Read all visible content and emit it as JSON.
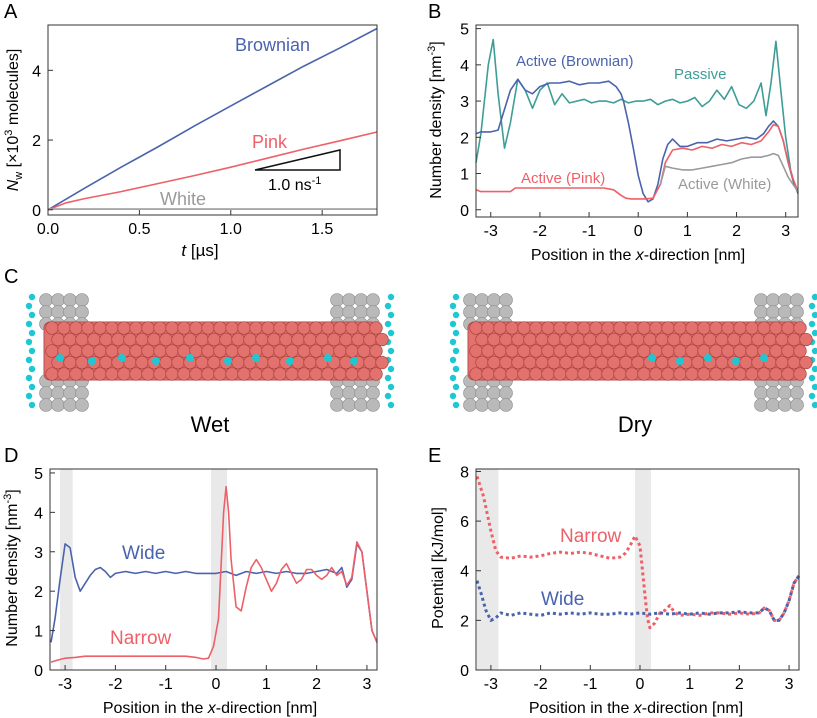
{
  "panel_letters": {
    "A": "A",
    "B": "B",
    "C": "C",
    "D": "D",
    "E": "E"
  },
  "colors": {
    "blue": "#4a63ad",
    "pink": "#ee6068",
    "gray": "#9a9a9a",
    "teal": "#3e9d96",
    "shade": "#e9e9e9",
    "wall": "#b9b9b9",
    "membrane": "#e3716e",
    "water": "#1ec8d2"
  },
  "chart_data": [
    {
      "id": "A",
      "type": "line",
      "ylabel_main": "N",
      "ylabel_sub": "w",
      "ylabel_rest": " [×10",
      "ylabel_exp": "3",
      "ylabel_end": " molecules]",
      "xlabel_italic": "t",
      "xlabel_rest": " [µs]",
      "xlim": [
        0,
        1.8
      ],
      "ylim": [
        -0.15,
        5.3
      ],
      "xticks": [
        0,
        0.5,
        1.0,
        1.5
      ],
      "xtick_labels": [
        "0.0",
        "0.5",
        "1.0",
        "1.5"
      ],
      "yticks": [
        0,
        2,
        4
      ],
      "ytick_labels": [
        "0",
        "2",
        "4"
      ],
      "series": [
        {
          "name": "Brownian",
          "color": "blue",
          "x": [
            0,
            0.2,
            0.4,
            0.6,
            0.8,
            1.0,
            1.2,
            1.4,
            1.6,
            1.8
          ],
          "y": [
            0,
            0.62,
            1.22,
            1.8,
            2.4,
            2.98,
            3.55,
            4.12,
            4.65,
            5.2
          ]
        },
        {
          "name": "Pink",
          "color": "pink",
          "x": [
            0,
            0.1,
            0.2,
            0.4,
            0.6,
            0.8,
            1.0,
            1.2,
            1.4,
            1.6,
            1.8
          ],
          "y": [
            0,
            0.2,
            0.32,
            0.52,
            0.75,
            0.98,
            1.22,
            1.48,
            1.74,
            1.98,
            2.23
          ]
        },
        {
          "name": "White",
          "color": "gray",
          "x": [
            0,
            1.8
          ],
          "y": [
            0.02,
            0.02
          ]
        }
      ],
      "slope_label": "1.0 ns",
      "slope_exp": "-1"
    },
    {
      "id": "B",
      "type": "line",
      "ylabel": "Number density [nm",
      "ylabel_exp": "-3",
      "ylabel_end": "]",
      "xlabel_start": "Position in the ",
      "xlabel_italic": "x",
      "xlabel_end": "-direction [nm]",
      "xlim": [
        -3.3,
        3.25
      ],
      "ylim": [
        -0.2,
        5.1
      ],
      "xticks": [
        -3,
        -2,
        -1,
        0,
        1,
        2,
        3
      ],
      "xtick_labels": [
        "-3",
        "-2",
        "-1",
        "0",
        "1",
        "2",
        "3"
      ],
      "yticks": [
        0,
        1,
        2,
        3,
        4,
        5
      ],
      "ytick_labels": [
        "0",
        "1",
        "2",
        "3",
        "4",
        "5"
      ],
      "series": [
        {
          "name": "Passive",
          "color": "teal",
          "x": [
            -3.3,
            -3.2,
            -3.05,
            -2.95,
            -2.85,
            -2.72,
            -2.6,
            -2.45,
            -2.3,
            -2.15,
            -2.0,
            -1.85,
            -1.7,
            -1.55,
            -1.4,
            -1.25,
            -1.1,
            -0.95,
            -0.8,
            -0.65,
            -0.5,
            -0.35,
            -0.2,
            -0.05,
            0.1,
            0.25,
            0.4,
            0.55,
            0.7,
            0.85,
            1.0,
            1.15,
            1.3,
            1.45,
            1.6,
            1.75,
            1.9,
            2.05,
            2.2,
            2.35,
            2.5,
            2.6,
            2.7,
            2.8,
            2.9,
            3.0,
            3.1,
            3.2
          ],
          "y": [
            1.3,
            2.1,
            4.0,
            4.7,
            3.2,
            1.7,
            2.4,
            3.6,
            3.3,
            2.8,
            3.3,
            3.5,
            2.9,
            3.2,
            2.95,
            3.0,
            3.05,
            2.95,
            3.0,
            3.0,
            2.95,
            3.05,
            2.95,
            3.0,
            3.0,
            3.05,
            2.9,
            3.0,
            3.05,
            2.95,
            3.0,
            3.1,
            2.85,
            3.0,
            3.3,
            3.05,
            3.4,
            2.9,
            2.8,
            3.0,
            3.5,
            2.6,
            3.5,
            4.65,
            3.3,
            2.0,
            1.1,
            0.6
          ]
        },
        {
          "name": "Active (Brownian)",
          "color": "blue",
          "x": [
            -3.3,
            -3.2,
            -3.0,
            -2.85,
            -2.6,
            -2.45,
            -2.3,
            -2.15,
            -2.0,
            -1.8,
            -1.6,
            -1.4,
            -1.2,
            -1.0,
            -0.8,
            -0.6,
            -0.45,
            -0.35,
            -0.3,
            -0.2,
            -0.1,
            0.0,
            0.1,
            0.2,
            0.3,
            0.4,
            0.5,
            0.6,
            0.7,
            0.85,
            1.0,
            1.2,
            1.4,
            1.6,
            1.8,
            2.0,
            2.2,
            2.4,
            2.55,
            2.65,
            2.75,
            2.85,
            2.95,
            3.05,
            3.15,
            3.25
          ],
          "y": [
            2.1,
            2.15,
            2.15,
            2.2,
            3.3,
            3.6,
            3.3,
            3.2,
            3.4,
            3.5,
            3.5,
            3.55,
            3.45,
            3.5,
            3.5,
            3.55,
            3.4,
            3.2,
            3.0,
            2.4,
            1.7,
            0.95,
            0.45,
            0.22,
            0.3,
            0.7,
            1.4,
            1.8,
            1.95,
            1.75,
            1.75,
            1.85,
            1.85,
            1.95,
            1.9,
            1.95,
            2.0,
            1.95,
            2.1,
            2.3,
            2.45,
            2.3,
            1.9,
            1.3,
            0.8,
            0.45
          ]
        },
        {
          "name": "Active (Pink)",
          "color": "pink",
          "x": [
            -3.3,
            -3.2,
            -3.0,
            -2.8,
            -2.6,
            -2.5,
            -2.2,
            -1.9,
            -1.6,
            -1.3,
            -1.0,
            -0.7,
            -0.5,
            -0.35,
            -0.25,
            -0.15,
            0.0,
            0.15,
            0.3,
            0.45,
            0.55,
            0.7,
            0.9,
            1.1,
            1.3,
            1.5,
            1.7,
            1.9,
            2.1,
            2.3,
            2.5,
            2.65,
            2.75,
            2.85,
            2.95,
            3.05,
            3.15,
            3.25
          ],
          "y": [
            0.55,
            0.5,
            0.5,
            0.5,
            0.5,
            0.6,
            0.6,
            0.6,
            0.6,
            0.6,
            0.6,
            0.6,
            0.55,
            0.4,
            0.32,
            0.3,
            0.3,
            0.3,
            0.32,
            0.7,
            1.3,
            1.65,
            1.7,
            1.65,
            1.75,
            1.7,
            1.8,
            1.75,
            1.85,
            1.8,
            1.9,
            2.15,
            2.35,
            2.3,
            1.9,
            1.3,
            0.85,
            0.5
          ]
        },
        {
          "name": "Active (White)",
          "color": "gray",
          "x": [
            0.45,
            0.55,
            0.7,
            0.9,
            1.1,
            1.3,
            1.5,
            1.7,
            1.9,
            2.1,
            2.3,
            2.5,
            2.65,
            2.75,
            2.85,
            2.95,
            3.05,
            3.15,
            3.25
          ],
          "y": [
            0.7,
            1.2,
            1.15,
            1.1,
            1.1,
            1.15,
            1.2,
            1.25,
            1.3,
            1.4,
            1.45,
            1.45,
            1.5,
            1.55,
            1.5,
            1.2,
            0.9,
            0.7,
            0.5
          ]
        }
      ]
    },
    {
      "id": "D",
      "type": "line",
      "ylabel": "Number density [nm",
      "ylabel_exp": "-3",
      "ylabel_end": "]",
      "xlabel_start": "Position in the ",
      "xlabel_italic": "x",
      "xlabel_end": "-direction [nm]",
      "xlim": [
        -3.3,
        3.2
      ],
      "ylim": [
        0,
        5.1
      ],
      "xticks": [
        -3,
        -2,
        -1,
        0,
        1,
        2,
        3
      ],
      "xtick_labels": [
        "-3",
        "-2",
        "-1",
        "0",
        "1",
        "2",
        "3"
      ],
      "yticks": [
        0,
        1,
        2,
        3,
        4,
        5
      ],
      "ytick_labels": [
        "0",
        "1",
        "2",
        "3",
        "4",
        "5"
      ],
      "shaded": [
        [
          -3.1,
          -2.85
        ],
        [
          -0.1,
          0.22
        ]
      ],
      "series": [
        {
          "name": "Wide",
          "color": "blue",
          "x": [
            -3.28,
            -3.2,
            -3.1,
            -3.0,
            -2.9,
            -2.8,
            -2.7,
            -2.6,
            -2.5,
            -2.4,
            -2.3,
            -2.2,
            -2.1,
            -2.0,
            -1.8,
            -1.6,
            -1.4,
            -1.2,
            -1.0,
            -0.8,
            -0.6,
            -0.4,
            -0.2,
            0.0,
            0.2,
            0.4,
            0.6,
            0.8,
            1.0,
            1.2,
            1.4,
            1.6,
            1.8,
            2.0,
            2.2,
            2.4,
            2.5,
            2.6,
            2.7,
            2.8,
            2.9,
            3.0,
            3.1,
            3.2
          ],
          "y": [
            0.7,
            1.3,
            2.3,
            3.2,
            3.1,
            2.35,
            2.0,
            2.2,
            2.4,
            2.55,
            2.6,
            2.5,
            2.35,
            2.45,
            2.5,
            2.45,
            2.5,
            2.45,
            2.5,
            2.45,
            2.5,
            2.45,
            2.45,
            2.45,
            2.5,
            2.4,
            2.5,
            2.45,
            2.5,
            2.45,
            2.5,
            2.45,
            2.45,
            2.5,
            2.55,
            2.45,
            2.6,
            2.1,
            2.3,
            3.2,
            3.0,
            2.0,
            1.0,
            0.7
          ]
        },
        {
          "name": "Narrow",
          "color": "pink",
          "x": [
            -3.28,
            -3.15,
            -3.0,
            -2.8,
            -2.6,
            -2.4,
            -2.2,
            -2.0,
            -1.8,
            -1.6,
            -1.4,
            -1.2,
            -1.0,
            -0.8,
            -0.6,
            -0.4,
            -0.25,
            -0.15,
            -0.05,
            0.05,
            0.1,
            0.15,
            0.2,
            0.25,
            0.3,
            0.4,
            0.5,
            0.6,
            0.7,
            0.8,
            0.9,
            1.0,
            1.1,
            1.2,
            1.3,
            1.4,
            1.5,
            1.6,
            1.7,
            1.8,
            1.9,
            2.0,
            2.1,
            2.2,
            2.3,
            2.4,
            2.5,
            2.6,
            2.7,
            2.8,
            2.9,
            3.0,
            3.1,
            3.2
          ],
          "y": [
            0.2,
            0.25,
            0.3,
            0.32,
            0.35,
            0.35,
            0.35,
            0.35,
            0.35,
            0.35,
            0.35,
            0.35,
            0.35,
            0.35,
            0.35,
            0.32,
            0.28,
            0.3,
            0.6,
            1.3,
            2.6,
            4.0,
            4.65,
            4.0,
            2.8,
            1.6,
            1.5,
            2.1,
            2.6,
            2.8,
            2.6,
            2.3,
            2.0,
            2.2,
            2.55,
            2.7,
            2.45,
            2.2,
            2.3,
            2.55,
            2.55,
            2.4,
            2.3,
            2.4,
            2.6,
            2.4,
            2.5,
            2.15,
            2.35,
            3.25,
            3.0,
            2.0,
            1.0,
            0.7
          ]
        }
      ]
    },
    {
      "id": "E",
      "type": "line",
      "ylabel": "Potential [kJ/mol]",
      "xlabel_start": "Position in the ",
      "xlabel_italic": "x",
      "xlabel_end": "-direction [nm]",
      "xlim": [
        -3.3,
        3.2
      ],
      "ylim": [
        0,
        8.1
      ],
      "xticks": [
        -3,
        -2,
        -1,
        0,
        1,
        2,
        3
      ],
      "xtick_labels": [
        "-3",
        "-2",
        "-1",
        "0",
        "1",
        "2",
        "3"
      ],
      "yticks": [
        0,
        2,
        4,
        6,
        8
      ],
      "ytick_labels": [
        "0",
        "2",
        "4",
        "6",
        "8"
      ],
      "shaded": [
        [
          -3.28,
          -2.85
        ],
        [
          -0.1,
          0.22
        ]
      ],
      "series": [
        {
          "name": "Narrow",
          "color": "pink",
          "dashed": true,
          "x": [
            -3.28,
            -3.15,
            -3.0,
            -2.9,
            -2.8,
            -2.6,
            -2.4,
            -2.2,
            -2.0,
            -1.8,
            -1.6,
            -1.4,
            -1.2,
            -1.0,
            -0.8,
            -0.6,
            -0.4,
            -0.3,
            -0.2,
            -0.1,
            0.0,
            0.05,
            0.1,
            0.15,
            0.2,
            0.3,
            0.4,
            0.5,
            0.6,
            0.7,
            0.8,
            1.0,
            1.2,
            1.4,
            1.6,
            1.8,
            2.0,
            2.2,
            2.4,
            2.5,
            2.6,
            2.7,
            2.8,
            2.9,
            3.0,
            3.1,
            3.2
          ],
          "y": [
            7.8,
            7.0,
            5.6,
            4.8,
            4.55,
            4.5,
            4.6,
            4.55,
            4.6,
            4.7,
            4.75,
            4.7,
            4.75,
            4.7,
            4.6,
            4.5,
            4.55,
            4.7,
            5.0,
            5.4,
            5.0,
            4.0,
            3.0,
            2.1,
            1.7,
            1.9,
            2.3,
            2.4,
            2.6,
            2.3,
            2.2,
            2.25,
            2.2,
            2.3,
            2.3,
            2.25,
            2.3,
            2.25,
            2.3,
            2.5,
            2.4,
            2.0,
            2.0,
            2.3,
            2.8,
            3.5,
            3.8
          ]
        },
        {
          "name": "Wide",
          "color": "blue",
          "dashed": true,
          "x": [
            -3.28,
            -3.2,
            -3.1,
            -3.0,
            -2.9,
            -2.8,
            -2.6,
            -2.4,
            -2.2,
            -2.0,
            -1.8,
            -1.6,
            -1.4,
            -1.2,
            -1.0,
            -0.8,
            -0.6,
            -0.4,
            -0.2,
            0.0,
            0.2,
            0.4,
            0.6,
            0.8,
            1.0,
            1.2,
            1.4,
            1.6,
            1.8,
            2.0,
            2.2,
            2.4,
            2.5,
            2.6,
            2.7,
            2.8,
            2.9,
            3.0,
            3.1,
            3.2
          ],
          "y": [
            3.6,
            3.1,
            2.4,
            2.0,
            2.1,
            2.3,
            2.2,
            2.3,
            2.25,
            2.2,
            2.3,
            2.25,
            2.3,
            2.25,
            2.3,
            2.25,
            2.25,
            2.3,
            2.25,
            2.3,
            2.25,
            2.3,
            2.25,
            2.3,
            2.25,
            2.3,
            2.25,
            2.3,
            2.3,
            2.35,
            2.3,
            2.3,
            2.5,
            2.4,
            2.0,
            2.0,
            2.3,
            2.8,
            3.5,
            3.8
          ]
        }
      ]
    }
  ],
  "panel_c": {
    "left_label": "Wet",
    "right_label": "Dry"
  }
}
